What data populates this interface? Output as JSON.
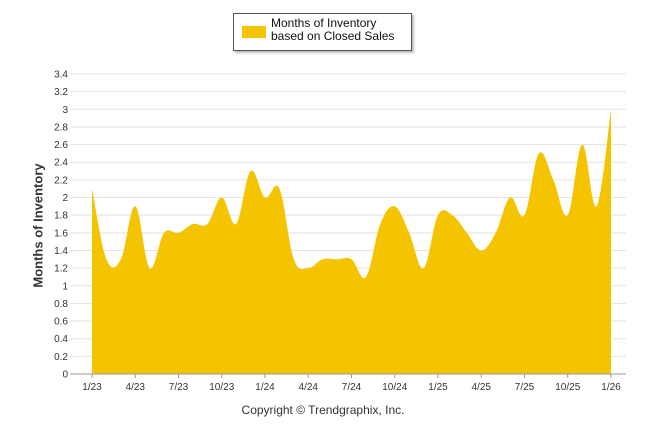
{
  "legend": {
    "label": "Months of Inventory based on Closed Sales",
    "color": "#F5C400"
  },
  "footer": {
    "copyright": "Copyright © Trendgraphix, Inc."
  },
  "chart_data": {
    "type": "area",
    "ylabel": "Months of Inventory",
    "xlabel": "",
    "title": "",
    "ylim": [
      0,
      3.4
    ],
    "yticks": [
      0,
      0.2,
      0.4,
      0.6,
      0.8,
      1,
      1.2,
      1.4,
      1.6,
      1.8,
      2,
      2.2,
      2.4,
      2.6,
      2.8,
      3,
      3.2,
      3.4
    ],
    "x_tick_labels": [
      "1/23",
      "4/23",
      "7/23",
      "10/23",
      "1/24",
      "4/24",
      "7/24",
      "10/24",
      "1/25",
      "4/25",
      "7/25",
      "10/25",
      "1/26"
    ],
    "grid": true,
    "legend_position": "top-center",
    "series": [
      {
        "name": "Months of Inventory based on Closed Sales",
        "color": "#F5C400",
        "x": [
          "1/23",
          "2/23",
          "3/23",
          "4/23",
          "5/23",
          "6/23",
          "7/23",
          "8/23",
          "9/23",
          "10/23",
          "11/23",
          "12/23",
          "1/24",
          "2/24",
          "3/24",
          "4/24",
          "5/24",
          "6/24",
          "7/24",
          "8/24",
          "9/24",
          "10/24",
          "11/24",
          "12/24",
          "1/25",
          "2/25",
          "3/25",
          "4/25",
          "5/25",
          "6/25",
          "7/25",
          "8/25",
          "9/25",
          "10/25",
          "11/25",
          "12/25",
          "1/26"
        ],
        "values": [
          2.1,
          1.3,
          1.3,
          1.9,
          1.2,
          1.6,
          1.6,
          1.7,
          1.7,
          2.0,
          1.7,
          2.3,
          2.0,
          2.1,
          1.3,
          1.2,
          1.3,
          1.3,
          1.3,
          1.1,
          1.7,
          1.9,
          1.6,
          1.2,
          1.8,
          1.8,
          1.6,
          1.4,
          1.6,
          2.0,
          1.8,
          2.5,
          2.2,
          1.8,
          2.6,
          1.9,
          3.0
        ]
      }
    ]
  }
}
